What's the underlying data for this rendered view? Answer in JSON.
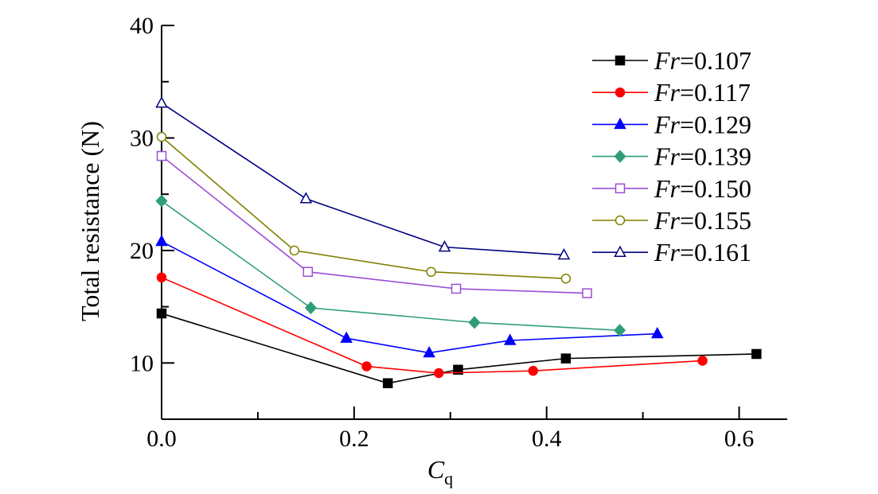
{
  "chart_data": {
    "type": "line",
    "title": "",
    "xlabel": {
      "main": "C",
      "sub": "q"
    },
    "ylabel": "Total resistance (N)",
    "xlim": [
      0,
      0.65
    ],
    "ylim": [
      5,
      40
    ],
    "xticks": [
      0.0,
      0.2,
      0.4,
      0.6
    ],
    "xtick_labels": [
      "0.0",
      "0.2",
      "0.4",
      "0.6"
    ],
    "yticks": [
      10,
      20,
      30,
      40
    ],
    "ytick_labels": [
      "10",
      "20",
      "30",
      "40"
    ],
    "grid": false,
    "legend_position": "top-right",
    "legend_prefix": "Fr",
    "series": [
      {
        "name": "=0.107",
        "color": "#000000",
        "marker": "square",
        "filled": true,
        "x": [
          0.0,
          0.235,
          0.308,
          0.42,
          0.618
        ],
        "y": [
          14.4,
          8.2,
          9.4,
          10.4,
          10.8
        ]
      },
      {
        "name": "=0.117",
        "color": "#ff0000",
        "marker": "circle",
        "filled": true,
        "x": [
          0.0,
          0.213,
          0.288,
          0.386,
          0.562
        ],
        "y": [
          17.6,
          9.7,
          9.1,
          9.3,
          10.2
        ]
      },
      {
        "name": "=0.129",
        "color": "#0000ff",
        "marker": "triangle",
        "filled": true,
        "x": [
          0.0,
          0.192,
          0.278,
          0.362,
          0.515
        ],
        "y": [
          20.8,
          12.2,
          10.9,
          12.0,
          12.6
        ]
      },
      {
        "name": "=0.139",
        "color": "#2e9e78",
        "marker": "diamond",
        "filled": true,
        "x": [
          0.0,
          0.155,
          0.325,
          0.476
        ],
        "y": [
          24.4,
          14.9,
          13.6,
          12.9
        ]
      },
      {
        "name": "=0.150",
        "color": "#9b4fd6",
        "marker": "square",
        "filled": false,
        "x": [
          0.0,
          0.152,
          0.306,
          0.442
        ],
        "y": [
          28.4,
          18.1,
          16.6,
          16.2
        ]
      },
      {
        "name": "=0.155",
        "color": "#808000",
        "marker": "circle",
        "filled": false,
        "x": [
          0.0,
          0.138,
          0.28,
          0.42
        ],
        "y": [
          30.1,
          20.0,
          18.1,
          17.5
        ]
      },
      {
        "name": "=0.161",
        "color": "#000080",
        "marker": "triangle",
        "filled": false,
        "x": [
          0.0,
          0.15,
          0.294,
          0.418
        ],
        "y": [
          33.1,
          24.6,
          20.3,
          19.6
        ]
      }
    ]
  }
}
